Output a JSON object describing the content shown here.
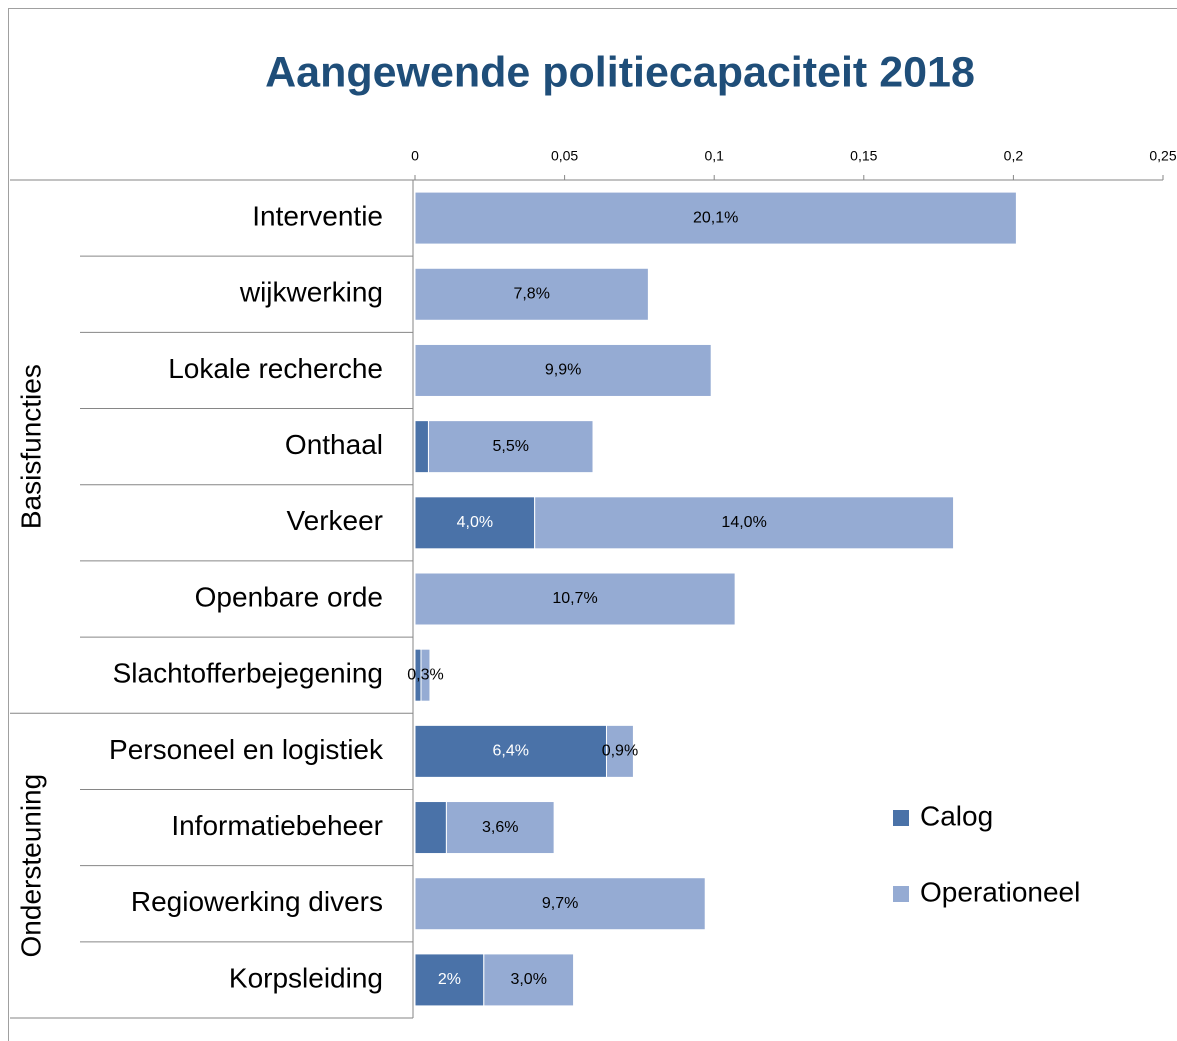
{
  "chart_data": {
    "type": "bar",
    "orientation": "horizontal",
    "stacked": true,
    "title": "Aangewende politiecapaciteit 2018",
    "groups": [
      {
        "name": "Basisfuncties",
        "categories": [
          "Interventie",
          "wijkwerking",
          "Lokale recherche",
          "Onthaal",
          "Verkeer",
          "Openbare orde",
          "Slachtofferbejegening"
        ]
      },
      {
        "name": "Ondersteuning",
        "categories": [
          "Personeel en logistiek",
          "Informatiebeheer",
          "Regiowerking divers",
          "Korpsleiding"
        ]
      }
    ],
    "series": [
      {
        "name": "Calog",
        "color": "#4a72a8",
        "values": [
          null,
          null,
          null,
          0.0045,
          0.04,
          null,
          0.002,
          0.064,
          0.0105,
          null,
          0.023
        ],
        "value_labels": [
          null,
          null,
          null,
          null,
          "4,0%",
          null,
          null,
          "6,4%",
          null,
          null,
          "2%"
        ]
      },
      {
        "name": "Operationeel",
        "color": "#95abd3",
        "values": [
          0.201,
          0.078,
          0.099,
          0.055,
          0.14,
          0.107,
          0.003,
          0.009,
          0.036,
          0.097,
          0.03
        ],
        "value_labels": [
          "20,1%",
          "7,8%",
          "9,9%",
          "5,5%",
          "14,0%",
          "10,7%",
          "0,3%",
          "0,9%",
          "3,6%",
          "9,7%",
          "3,0%"
        ]
      }
    ],
    "xlim": [
      0,
      0.25
    ],
    "xticks": [
      0,
      {
        "value": 0.05,
        "label": "0,05"
      },
      {
        "value": 0.1,
        "label": "0,1"
      },
      {
        "value": 0.15,
        "label": "0,15"
      },
      {
        "value": 0.2,
        "label": "0,2"
      },
      {
        "value": 0.25,
        "label": "0,25"
      }
    ],
    "legend": "right"
  }
}
